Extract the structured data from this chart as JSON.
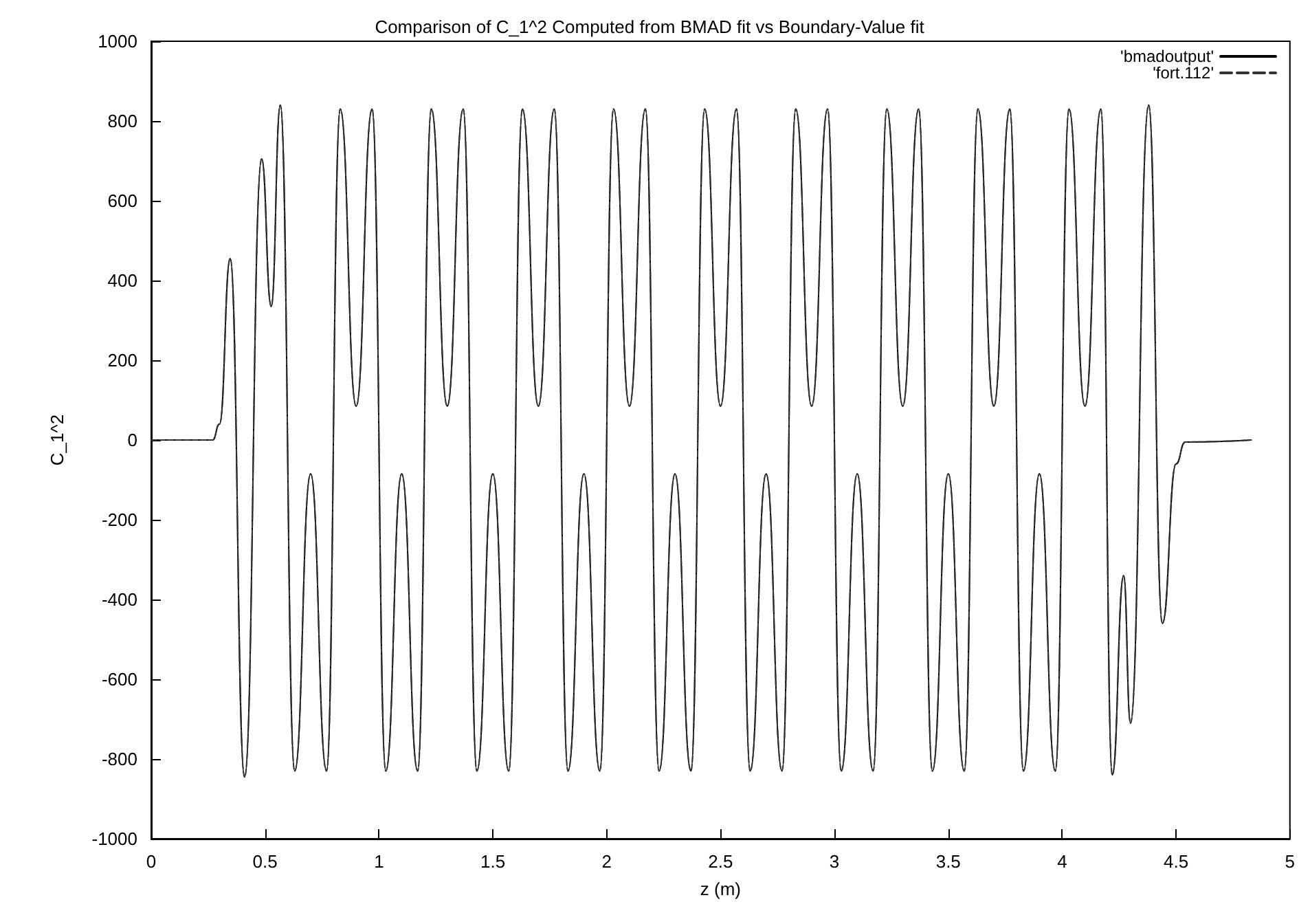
{
  "chart_data": {
    "type": "line",
    "title": "Comparison of C_1^2 Computed from BMAD fit vs Boundary-Value fit",
    "xlabel": "z (m)",
    "ylabel": "C_1^2",
    "x": [
      0,
      0.27,
      0.3,
      0.347,
      0.41,
      0.485,
      0.527,
      0.567,
      0.63,
      0.7,
      0.77,
      0.83,
      0.9,
      0.97,
      1.03,
      1.1,
      1.17,
      1.23,
      1.3,
      1.37,
      1.43,
      1.5,
      1.57,
      1.63,
      1.7,
      1.77,
      1.83,
      1.9,
      1.97,
      2.03,
      2.1,
      2.17,
      2.23,
      2.3,
      2.37,
      2.43,
      2.5,
      2.57,
      2.63,
      2.7,
      2.77,
      2.83,
      2.9,
      2.97,
      3.03,
      3.1,
      3.17,
      3.23,
      3.3,
      3.37,
      3.43,
      3.5,
      3.57,
      3.63,
      3.7,
      3.77,
      3.83,
      3.9,
      3.97,
      4.03,
      4.1,
      4.17,
      4.22,
      4.27,
      4.3,
      4.38,
      4.44,
      4.5,
      4.54,
      4.83
    ],
    "series": [
      {
        "name": "'bmadoutput'",
        "color": "#000000",
        "line_style": "solid",
        "values": [
          0,
          0,
          40,
          455,
          -845,
          705,
          335,
          840,
          -830,
          -85,
          -830,
          830,
          85,
          830,
          -830,
          -85,
          -830,
          830,
          85,
          830,
          -830,
          -85,
          -830,
          830,
          85,
          830,
          -830,
          -85,
          -830,
          830,
          85,
          830,
          -830,
          -85,
          -830,
          830,
          85,
          830,
          -830,
          -85,
          -830,
          830,
          85,
          830,
          -830,
          -85,
          -830,
          830,
          85,
          830,
          -830,
          -85,
          -830,
          830,
          85,
          830,
          -830,
          -85,
          -830,
          830,
          85,
          830,
          -840,
          -340,
          -710,
          840,
          -460,
          -60,
          -5,
          0
        ]
      },
      {
        "name": "'fort.112'",
        "color": "#333333",
        "line_style": "dashed",
        "values": [
          0,
          0,
          40,
          455,
          -845,
          705,
          335,
          840,
          -830,
          -85,
          -830,
          830,
          85,
          830,
          -830,
          -85,
          -830,
          830,
          85,
          830,
          -830,
          -85,
          -830,
          830,
          85,
          830,
          -830,
          -85,
          -830,
          830,
          85,
          830,
          -830,
          -85,
          -830,
          830,
          85,
          830,
          -830,
          -85,
          -830,
          830,
          85,
          830,
          -830,
          -85,
          -830,
          830,
          85,
          830,
          -830,
          -85,
          -830,
          830,
          85,
          830,
          -830,
          -85,
          -830,
          830,
          85,
          830,
          -840,
          -340,
          -710,
          840,
          -460,
          -60,
          -5,
          0
        ]
      }
    ],
    "xlim": [
      0,
      5
    ],
    "xticks": [
      0,
      0.5,
      1,
      1.5,
      2,
      2.5,
      3,
      3.5,
      4,
      4.5,
      5
    ],
    "ylim": [
      -1000,
      1000
    ],
    "yticks": [
      -1000,
      -800,
      -600,
      -400,
      -200,
      0,
      200,
      400,
      600,
      800,
      1000
    ],
    "grid": false,
    "legend": "top right",
    "marker": "none"
  }
}
